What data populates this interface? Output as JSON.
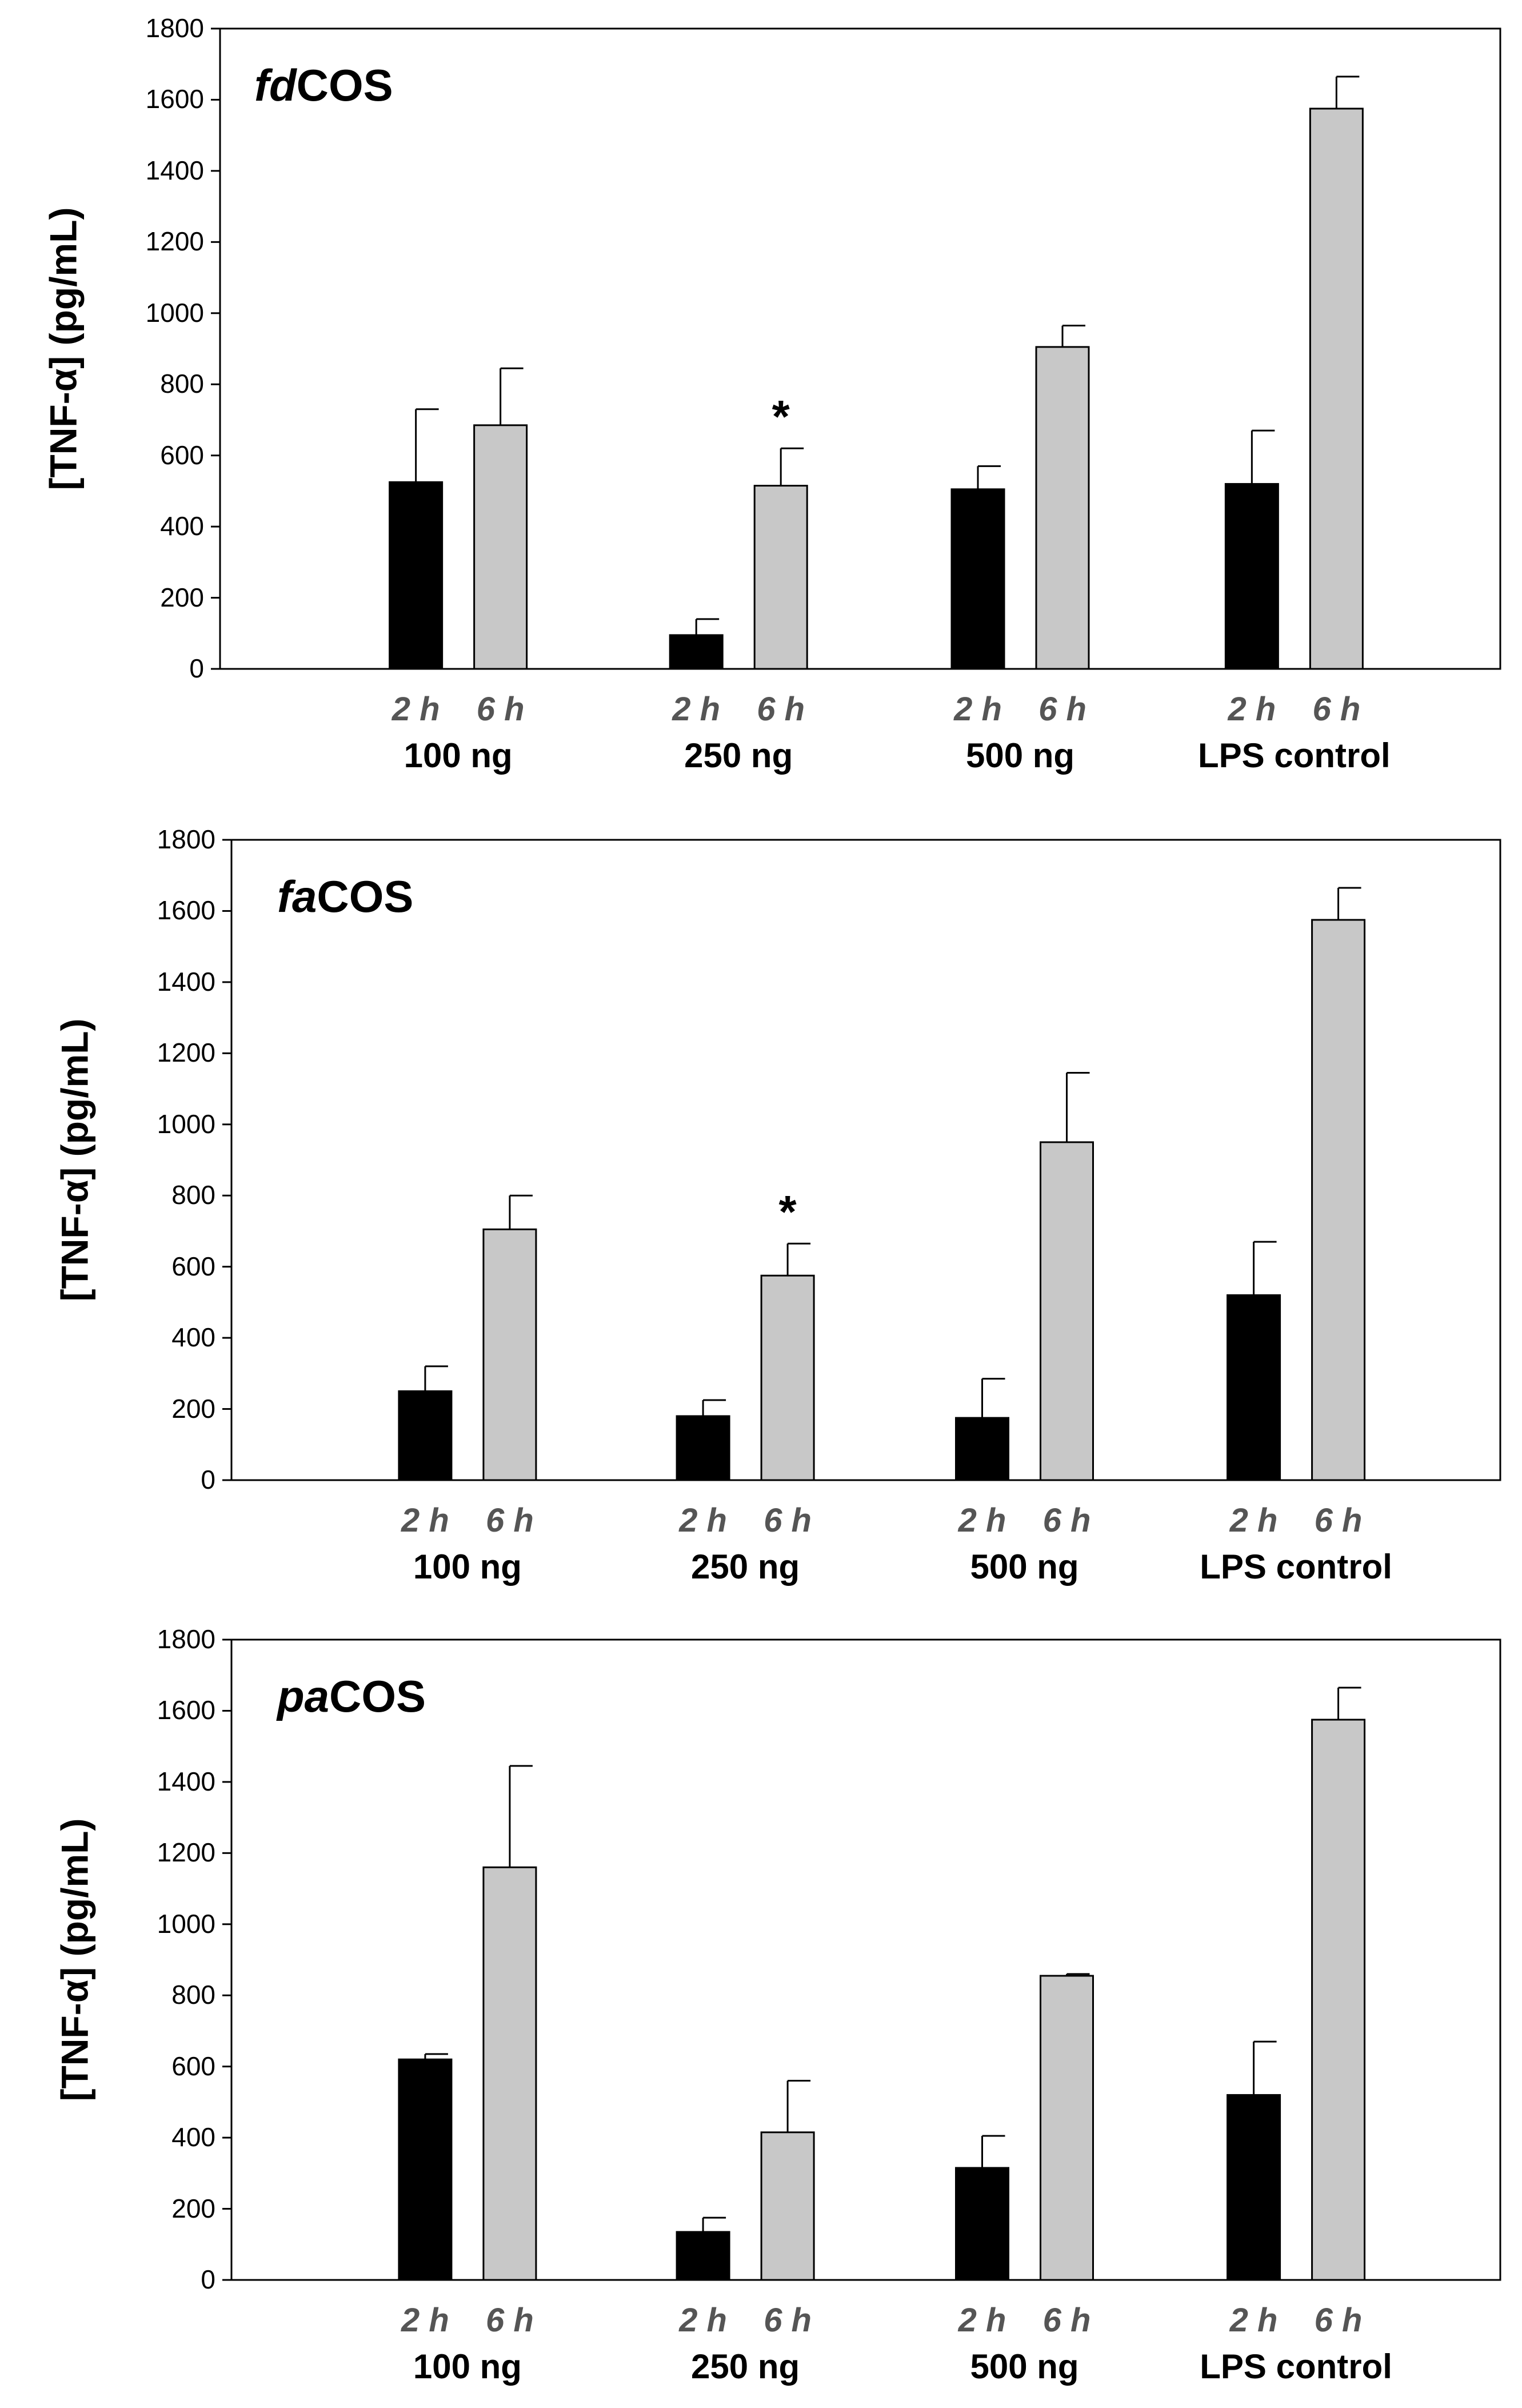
{
  "colors": {
    "bar_2h": "#000000",
    "bar_6h": "#c8c8c8",
    "bar_outline": "#000000",
    "time_label": "#555555"
  },
  "chart_data": [
    {
      "type": "bar",
      "title_prefix": "fd",
      "title_suffix": "COS",
      "ylabel": "[TNF-α] (pg/mL)",
      "ylim": [
        0,
        1800
      ],
      "yticks": [
        "0",
        "200",
        "400",
        "600",
        "800",
        "1000",
        "1200",
        "1400",
        "1600",
        "1800"
      ],
      "categories": [
        "100 ng",
        "250 ng",
        "500 ng",
        "LPS control"
      ],
      "time_labels": [
        "2 h",
        "6 h"
      ],
      "series": [
        {
          "name": "2 h",
          "values": [
            525,
            95,
            505,
            520
          ],
          "errors": [
            205,
            45,
            65,
            150
          ],
          "significant": [
            false,
            false,
            false,
            false
          ]
        },
        {
          "name": "6 h",
          "values": [
            685,
            515,
            905,
            1575
          ],
          "errors": [
            160,
            105,
            60,
            90
          ],
          "significant": [
            false,
            true,
            false,
            false
          ]
        }
      ],
      "significance_marker": "*"
    },
    {
      "type": "bar",
      "title_prefix": "fa",
      "title_suffix": "COS",
      "ylabel": "[TNF-α] (pg/mL)",
      "ylim": [
        0,
        1800
      ],
      "yticks": [
        "0",
        "200",
        "400",
        "600",
        "800",
        "1000",
        "1200",
        "1400",
        "1600",
        "1800"
      ],
      "categories": [
        "100 ng",
        "250 ng",
        "500 ng",
        "LPS control"
      ],
      "time_labels": [
        "2 h",
        "6 h"
      ],
      "series": [
        {
          "name": "2 h",
          "values": [
            250,
            180,
            175,
            520
          ],
          "errors": [
            70,
            45,
            110,
            150
          ],
          "significant": [
            false,
            false,
            false,
            false
          ]
        },
        {
          "name": "6 h",
          "values": [
            705,
            575,
            950,
            1575
          ],
          "errors": [
            95,
            90,
            195,
            90
          ],
          "significant": [
            false,
            true,
            false,
            false
          ]
        }
      ],
      "significance_marker": "*"
    },
    {
      "type": "bar",
      "title_prefix": "pa",
      "title_suffix": "COS",
      "ylabel": "[TNF-α] (pg/mL)",
      "ylim": [
        0,
        1800
      ],
      "yticks": [
        "0",
        "200",
        "400",
        "600",
        "800",
        "1000",
        "1200",
        "1400",
        "1600",
        "1800"
      ],
      "categories": [
        "100 ng",
        "250 ng",
        "500 ng",
        "LPS control"
      ],
      "time_labels": [
        "2 h",
        "6 h"
      ],
      "series": [
        {
          "name": "2 h",
          "values": [
            620,
            135,
            315,
            520
          ],
          "errors": [
            15,
            40,
            90,
            150
          ],
          "significant": [
            false,
            false,
            false,
            false
          ]
        },
        {
          "name": "6 h",
          "values": [
            1160,
            415,
            855,
            1575
          ],
          "errors": [
            285,
            145,
            5,
            90
          ],
          "significant": [
            false,
            false,
            false,
            false
          ]
        }
      ],
      "significance_marker": "*"
    }
  ]
}
